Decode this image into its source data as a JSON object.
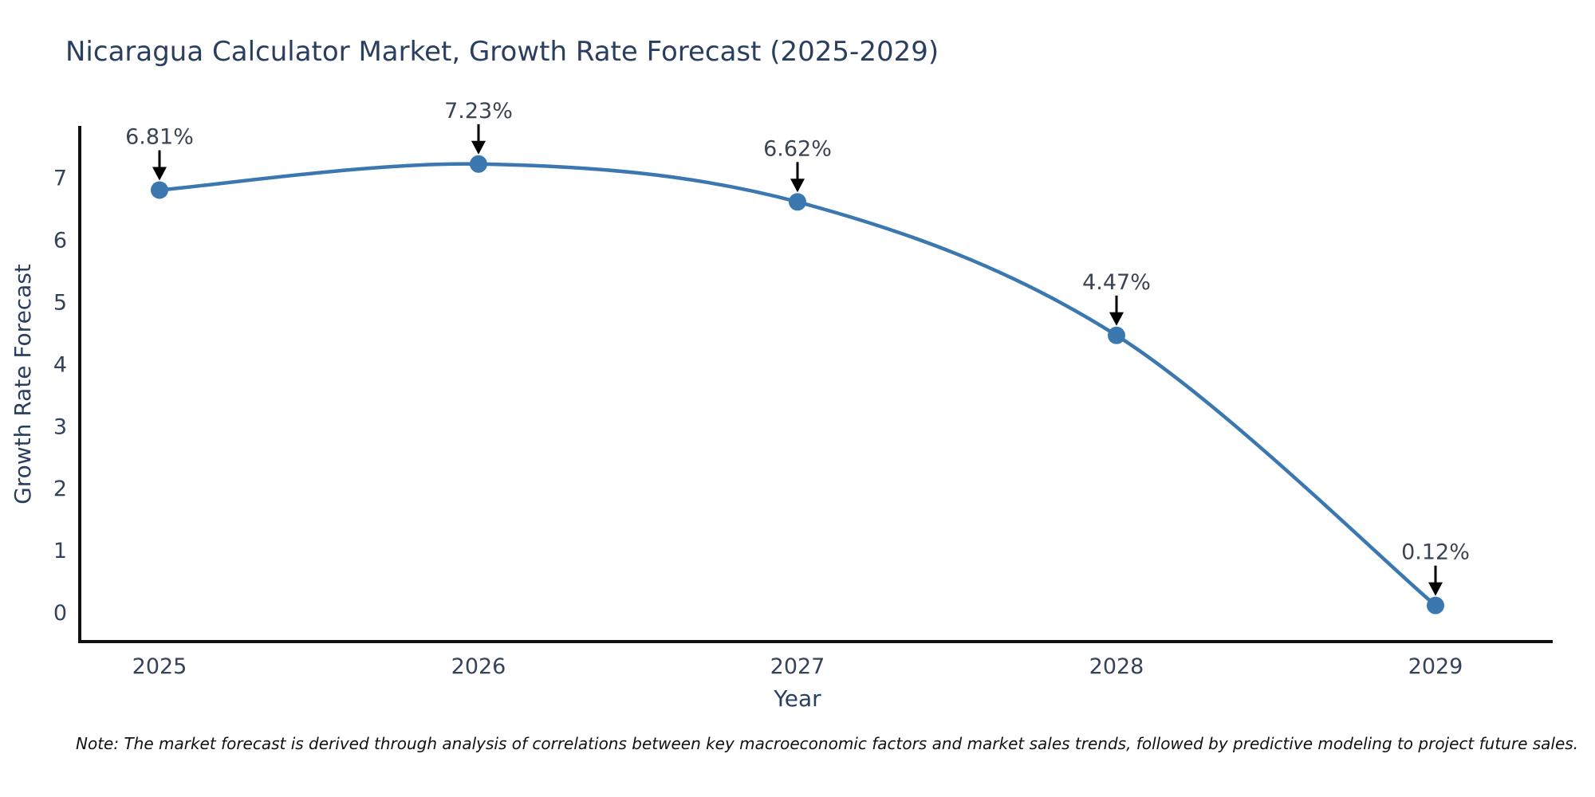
{
  "title": "Nicaragua Calculator Market, Growth Rate Forecast (2025-2029)",
  "note": "Note: The market forecast is derived through analysis of correlations between key macroeconomic factors and market sales trends, followed by predictive modeling to project future sales.",
  "chart_data": {
    "type": "line",
    "title": "Nicaragua Calculator Market, Growth Rate Forecast (2025-2029)",
    "xlabel": "Year",
    "ylabel": "Growth Rate Forecast",
    "x": [
      2025,
      2026,
      2027,
      2028,
      2029
    ],
    "y": [
      6.81,
      7.23,
      6.62,
      4.47,
      0.12
    ],
    "point_labels": [
      "6.81%",
      "7.23%",
      "6.62%",
      "4.47%",
      "0.12%"
    ],
    "yticks": [
      0,
      1,
      2,
      3,
      4,
      5,
      6,
      7
    ],
    "ylim": [
      -0.5,
      7.8
    ],
    "grid": false,
    "legend": "none",
    "line_color": "#3b78b0",
    "marker_color": "#3b78b0",
    "axis_color": "#111111",
    "annotation_arrow_color": "#000000",
    "title_color": "#2a3f5f",
    "note_text": "Note: The market forecast is derived through analysis of correlations between key macroeconomic factors and market sales trends, followed by predictive modeling to project future sales."
  }
}
